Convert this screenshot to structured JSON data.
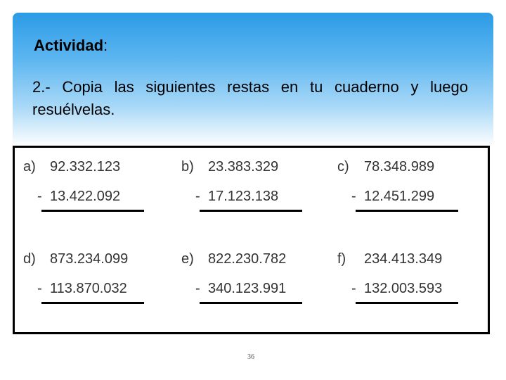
{
  "title": "Actividad",
  "title_colon": ":",
  "instruction": "2.- Copia las siguientes restas en tu cuaderno y luego resuélvelas.",
  "operator": "-",
  "problems": [
    {
      "label": "a)",
      "minuend": "92.332.123",
      "subtrahend": "13.422.092"
    },
    {
      "label": "b)",
      "minuend": "23.383.329",
      "subtrahend": "17.123.138"
    },
    {
      "label": "c)",
      "minuend": "78.348.989",
      "subtrahend": "12.451.299"
    },
    {
      "label": "d)",
      "minuend": "873.234.099",
      "subtrahend": "113.870.032"
    },
    {
      "label": "e)",
      "minuend": "822.230.782",
      "subtrahend": "340.123.991"
    },
    {
      "label": "f)",
      "minuend": "234.413.349",
      "subtrahend": "132.003.593"
    }
  ],
  "page_number": "36"
}
